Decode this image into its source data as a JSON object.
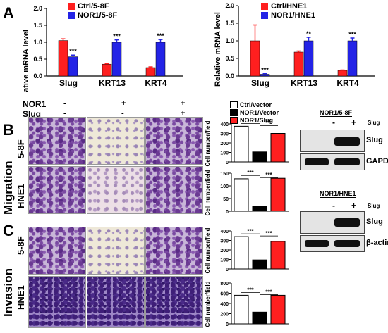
{
  "panels": {
    "A": "A",
    "B": "B",
    "C": "C"
  },
  "chartA1": {
    "legend": [
      {
        "label": "Ctrl/5-8F",
        "color": "#ff1f1f"
      },
      {
        "label": "NOR1/5-8F",
        "color": "#2323e6"
      }
    ],
    "ylabel": "Relative mRNA level",
    "yticks": [
      "0.0",
      "0.5",
      "1.0",
      "1.5",
      "2.0"
    ]
  },
  "chartA2": {
    "legend": [
      {
        "label": "Ctrl/HNE1",
        "color": "#ff1f1f"
      },
      {
        "label": "NOR1/HNE1",
        "color": "#2323e6"
      }
    ],
    "ylabel": "Relative mRNA level",
    "yticks": [
      "0.0",
      "0.5",
      "1.0",
      "1.5",
      "2.0"
    ]
  },
  "chart_data": [
    {
      "type": "bar",
      "categories": [
        "Slug",
        "KRT13",
        "KRT4"
      ],
      "ylabel": "Relative mRNA level",
      "ylim": [
        0,
        2.0
      ],
      "series": [
        {
          "name": "Ctrl/5-8F",
          "values": [
            1.05,
            0.35,
            0.25
          ],
          "errors": [
            0.05,
            0.02,
            0.02
          ]
        },
        {
          "name": "NOR1/5-8F",
          "values": [
            0.57,
            1.0,
            1.0
          ],
          "errors": [
            0.05,
            0.07,
            0.08
          ]
        }
      ],
      "significance": [
        "***",
        "***",
        "***"
      ]
    },
    {
      "type": "bar",
      "categories": [
        "Slug",
        "KRT13",
        "KRT4"
      ],
      "ylabel": "Relative mRNA level",
      "ylim": [
        0,
        2.0
      ],
      "series": [
        {
          "name": "Ctrl/HNE1",
          "values": [
            1.0,
            0.68,
            0.16
          ],
          "errors": [
            0.45,
            0.03,
            0.01
          ]
        },
        {
          "name": "NOR1/HNE1",
          "values": [
            0.05,
            1.0,
            1.0
          ],
          "errors": [
            0.02,
            0.1,
            0.08
          ]
        }
      ],
      "significance": [
        "***",
        "**",
        "***"
      ]
    },
    {
      "type": "bar",
      "categories": [
        "Ctrl/vector",
        "NOR1/Vector",
        "NOR1/Slug"
      ],
      "ylabel": "Cell number/field",
      "ylim": [
        0,
        400
      ],
      "yticks": [
        "0",
        "100",
        "200",
        "300",
        "400"
      ],
      "values": [
        375,
        105,
        300
      ],
      "significance": [
        "***",
        "***"
      ]
    },
    {
      "type": "bar",
      "categories": [
        "Ctrl/vector",
        "NOR1/Vector",
        "NOR1/Slug"
      ],
      "ylabel": "Cell number/field",
      "ylim": [
        0,
        150
      ],
      "yticks": [
        "0",
        "50",
        "100",
        "150"
      ],
      "values": [
        128,
        20,
        130
      ],
      "significance": [
        "***",
        "***"
      ]
    },
    {
      "type": "bar",
      "categories": [
        "Ctrl/vector",
        "NOR1/Vector",
        "NOR1/Slug"
      ],
      "ylabel": "Cell number/field",
      "ylim": [
        0,
        400
      ],
      "yticks": [
        "0",
        "100",
        "200",
        "300",
        "400"
      ],
      "values": [
        340,
        95,
        290
      ],
      "significance": [
        "***",
        "***"
      ]
    },
    {
      "type": "bar",
      "categories": [
        "Ctrl/vector",
        "NOR1/Vector",
        "NOR1/Slug"
      ],
      "ylabel": "Cell number/field",
      "ylim": [
        0,
        800
      ],
      "yticks": [
        "0",
        "200",
        "400",
        "600",
        "800"
      ],
      "values": [
        560,
        230,
        560
      ],
      "significance": [
        "***",
        "***"
      ]
    }
  ],
  "conditions": {
    "nor1_label": "NOR1",
    "slug_label": "Slug",
    "nor1_values": [
      "-",
      "+",
      "+"
    ],
    "slug_values": [
      "-",
      "-",
      "+"
    ]
  },
  "legendBC": [
    {
      "label": "Ctrl/vector",
      "color": "#ffffff"
    },
    {
      "label": "NOR1/Vector",
      "color": "#000000"
    },
    {
      "label": "NOR1/Slug",
      "color": "#ff1f1f"
    }
  ],
  "rows": {
    "migration": "Migration",
    "invasion": "Invasion",
    "cell_5_8f": "5-8F",
    "cell_hne1": "HNE1"
  },
  "western": [
    {
      "title": "NOR1/5-8F",
      "slug_label": "Slug",
      "minus": "-",
      "plus": "+",
      "bands": [
        "Slug",
        "GAPDH"
      ]
    },
    {
      "title": "NOR1/HNE1",
      "slug_label": "Slug",
      "minus": "-",
      "plus": "+",
      "bands": [
        "Slug",
        "β-actin"
      ]
    }
  ]
}
